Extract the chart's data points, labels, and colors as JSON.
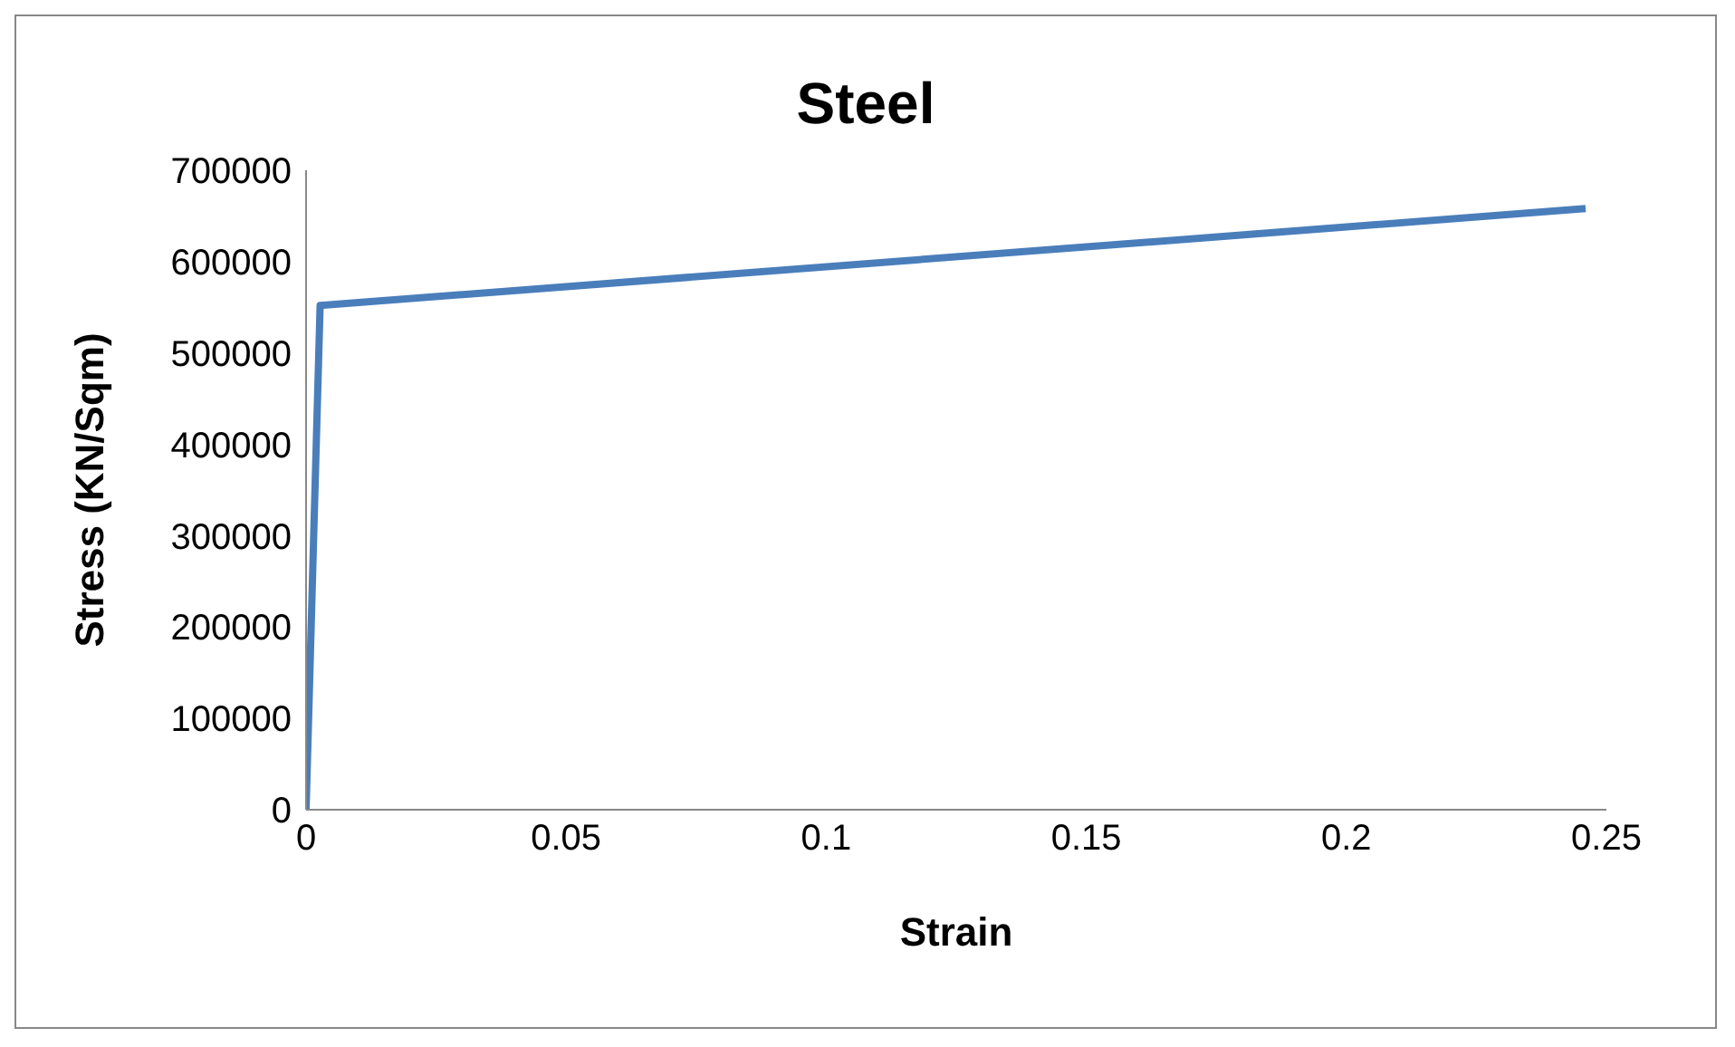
{
  "chart_data": {
    "type": "line",
    "title": "Steel",
    "xlabel": "Strain",
    "ylabel": "Stress (KN/Sqm)",
    "x": [
      0,
      0.0027,
      0.246
    ],
    "series": [
      {
        "color": "#4a7ebb",
        "values": [
          0,
          552000,
          658000
        ]
      }
    ],
    "xlim": [
      0,
      0.25
    ],
    "xticks": [
      0,
      0.05,
      0.1,
      0.15,
      0.2,
      0.25
    ],
    "ylim": [
      0,
      700000
    ],
    "yticks": [
      0,
      100000,
      200000,
      300000,
      400000,
      500000,
      600000,
      700000
    ]
  }
}
